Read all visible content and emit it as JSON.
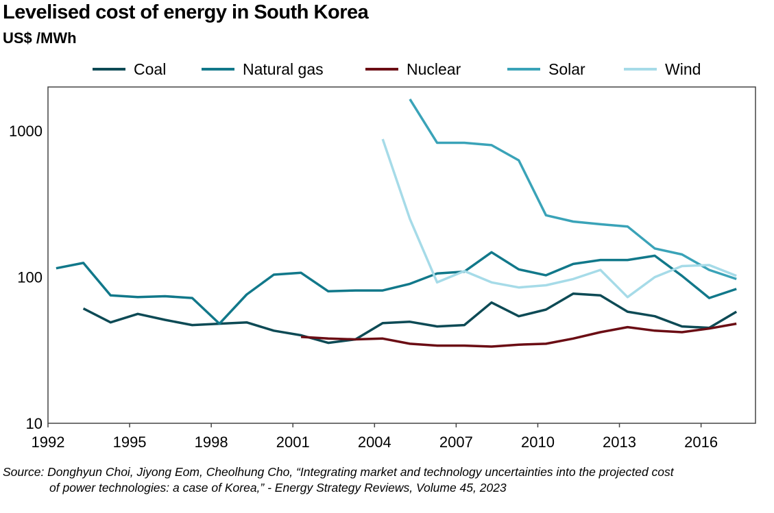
{
  "title": "Levelised cost of energy in South Korea",
  "subtitle": "US$ /MWh",
  "source": {
    "line1": "Source: Donghyun Choi, Jiyong Eom, Cheolhung Cho, “Integrating market and technology uncertainties into the projected cost",
    "line2": "of power technologies: a case of Korea,” - Energy Strategy Reviews, Volume 45, 2023"
  },
  "chart_data": {
    "type": "line",
    "title": "Levelised cost of energy in South Korea",
    "ylabel": "US$ /MWh",
    "xlabel": "",
    "yscale": "log",
    "ylim": [
      10,
      2000
    ],
    "xlim": [
      1992,
      2018
    ],
    "x_ticks": [
      "1992",
      "1995",
      "1998",
      "2001",
      "2004",
      "2007",
      "2010",
      "2013",
      "2016"
    ],
    "y_ticks": [
      "10",
      "100",
      "1000"
    ],
    "grid": false,
    "legend_position": "top",
    "series": [
      {
        "name": "Coal",
        "color": "#0d4a55",
        "points": [
          [
            1993.3,
            61
          ],
          [
            1994.3,
            49
          ],
          [
            1995.3,
            56
          ],
          [
            1996.3,
            51
          ],
          [
            1997.3,
            47
          ],
          [
            1998.3,
            48
          ],
          [
            1999.3,
            49
          ],
          [
            2000.3,
            43
          ],
          [
            2001.3,
            40
          ],
          [
            2002.3,
            35.5
          ],
          [
            2003.3,
            37.5
          ],
          [
            2004.3,
            48.5
          ],
          [
            2005.3,
            49.5
          ],
          [
            2006.3,
            46
          ],
          [
            2007.3,
            47
          ],
          [
            2008.3,
            67
          ],
          [
            2009.3,
            54
          ],
          [
            2010.3,
            60
          ],
          [
            2011.3,
            77
          ],
          [
            2012.3,
            75
          ],
          [
            2013.3,
            58
          ],
          [
            2014.3,
            54
          ],
          [
            2015.3,
            46
          ],
          [
            2016.3,
            45
          ],
          [
            2017.3,
            58
          ]
        ]
      },
      {
        "name": "Natural gas",
        "color": "#11788a",
        "points": [
          [
            1992.3,
            115
          ],
          [
            1993.3,
            125
          ],
          [
            1994.3,
            75
          ],
          [
            1995.3,
            73
          ],
          [
            1996.3,
            74
          ],
          [
            1997.3,
            72
          ],
          [
            1998.3,
            48
          ],
          [
            1999.3,
            76
          ],
          [
            2000.3,
            104
          ],
          [
            2001.3,
            107
          ],
          [
            2002.3,
            80
          ],
          [
            2003.3,
            81
          ],
          [
            2004.3,
            81
          ],
          [
            2005.3,
            90
          ],
          [
            2006.3,
            106
          ],
          [
            2007.3,
            109
          ],
          [
            2008.3,
            148
          ],
          [
            2009.3,
            113
          ],
          [
            2010.3,
            103
          ],
          [
            2011.3,
            123
          ],
          [
            2012.3,
            131
          ],
          [
            2013.3,
            131
          ],
          [
            2014.3,
            140
          ],
          [
            2015.3,
            102
          ],
          [
            2016.3,
            72
          ],
          [
            2017.3,
            83
          ]
        ]
      },
      {
        "name": "Nuclear",
        "color": "#6b0d14",
        "points": [
          [
            2001.3,
            39
          ],
          [
            2002.3,
            38
          ],
          [
            2003.3,
            37.5
          ],
          [
            2004.3,
            38
          ],
          [
            2005.3,
            35
          ],
          [
            2006.3,
            34
          ],
          [
            2007.3,
            34
          ],
          [
            2008.3,
            33.5
          ],
          [
            2009.3,
            34.5
          ],
          [
            2010.3,
            35
          ],
          [
            2011.3,
            38
          ],
          [
            2012.3,
            42
          ],
          [
            2013.3,
            45.5
          ],
          [
            2014.3,
            43
          ],
          [
            2015.3,
            42
          ],
          [
            2016.3,
            44.5
          ],
          [
            2017.3,
            48
          ]
        ]
      },
      {
        "name": "Solar",
        "color": "#3aa3b8",
        "points": [
          [
            2005.3,
            1650
          ],
          [
            2006.3,
            830
          ],
          [
            2007.3,
            830
          ],
          [
            2008.3,
            800
          ],
          [
            2009.3,
            630
          ],
          [
            2010.3,
            265
          ],
          [
            2011.3,
            240
          ],
          [
            2012.3,
            230
          ],
          [
            2013.3,
            222
          ],
          [
            2014.3,
            157
          ],
          [
            2015.3,
            143
          ],
          [
            2016.3,
            112
          ],
          [
            2017.3,
            97
          ]
        ]
      },
      {
        "name": "Wind",
        "color": "#a6dbe8",
        "points": [
          [
            2004.3,
            880
          ],
          [
            2005.3,
            250
          ],
          [
            2006.3,
            92
          ],
          [
            2007.3,
            110
          ],
          [
            2008.3,
            92
          ],
          [
            2009.3,
            85
          ],
          [
            2010.3,
            88
          ],
          [
            2011.3,
            97
          ],
          [
            2012.3,
            112
          ],
          [
            2013.3,
            73
          ],
          [
            2014.3,
            100
          ],
          [
            2015.3,
            119
          ],
          [
            2016.3,
            121
          ],
          [
            2017.3,
            102
          ]
        ]
      }
    ]
  }
}
